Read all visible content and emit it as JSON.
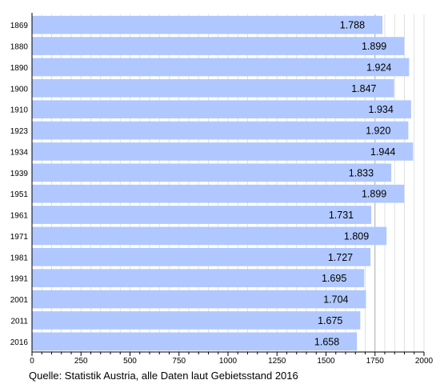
{
  "chart_data": {
    "type": "bar",
    "orientation": "horizontal",
    "categories": [
      "1869",
      "1880",
      "1890",
      "1900",
      "1910",
      "1923",
      "1934",
      "1939",
      "1951",
      "1961",
      "1971",
      "1981",
      "1991",
      "2001",
      "2011",
      "2016"
    ],
    "values": [
      1788,
      1899,
      1924,
      1847,
      1934,
      1920,
      1944,
      1833,
      1899,
      1731,
      1809,
      1727,
      1695,
      1704,
      1675,
      1658
    ],
    "value_labels": [
      "1.788",
      "1.899",
      "1.924",
      "1.847",
      "1.934",
      "1.920",
      "1.944",
      "1.833",
      "1.899",
      "1.731",
      "1.809",
      "1.727",
      "1.695",
      "1.704",
      "1.675",
      "1.658"
    ],
    "x_ticks": [
      0,
      250,
      500,
      750,
      1000,
      1250,
      1500,
      1750,
      2000
    ],
    "x_tick_labels": [
      "0",
      "250",
      "500",
      "750",
      "1000",
      "1250",
      "1500",
      "1750",
      "2000"
    ],
    "xlim": [
      0,
      2000
    ],
    "grid": "vertical",
    "bar_color": "#b0c8ff",
    "grid_color": "#d9d9d9",
    "grid_major_color": "#aaaaaa"
  },
  "caption": "Quelle: Statistik Austria, alle Daten laut Gebietsstand 2016"
}
